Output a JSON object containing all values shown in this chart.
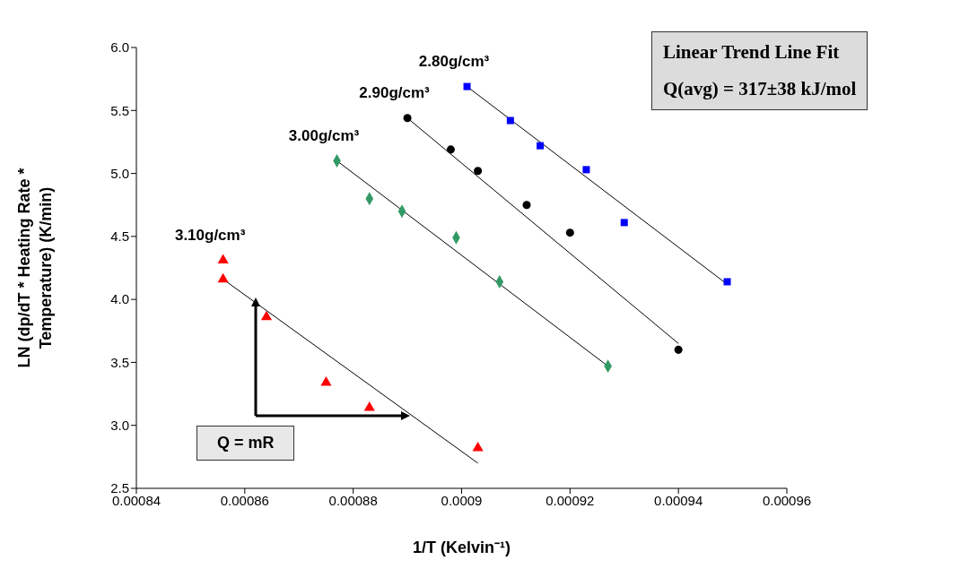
{
  "chart_data": {
    "type": "scatter",
    "xlabel": "1/T (Kelvin⁻¹)",
    "ylabel": "LN (dp/dT * Heating Rate * Temperature) (K/min)",
    "xlim": [
      0.00084,
      0.00096
    ],
    "xticks": [
      0.00084,
      0.00086,
      0.00088,
      0.0009,
      0.00092,
      0.00094,
      0.00096
    ],
    "ylim": [
      2.5,
      6.0
    ],
    "yticks": [
      {
        "value": 2.5,
        "label": "2.5"
      },
      {
        "value": 3,
        "label": "3.0"
      },
      {
        "value": 3.5,
        "label": "3.5"
      },
      {
        "value": 4,
        "label": "4.0"
      },
      {
        "value": 4.5,
        "label": "4.5"
      },
      {
        "value": 5,
        "label": "5.0"
      },
      {
        "value": 5.5,
        "label": "5.5"
      },
      {
        "value": 6,
        "label": "6.0"
      }
    ],
    "series": [
      {
        "name": "2.80g/cm³",
        "marker": "square",
        "color": "#0000ff",
        "x": [
          0.000901,
          0.000909,
          0.0009145,
          0.000923,
          0.00093,
          0.000949
        ],
        "values": [
          5.69,
          5.42,
          5.22,
          5.03,
          4.61,
          4.14
        ]
      },
      {
        "name": "2.90g/cm³",
        "marker": "circle",
        "color": "#000000",
        "x": [
          0.00089,
          0.000898,
          0.000903,
          0.000912,
          0.00092,
          0.00094
        ],
        "values": [
          5.44,
          5.19,
          5.02,
          4.75,
          4.53,
          3.6
        ]
      },
      {
        "name": "3.00g/cm³",
        "marker": "diamond",
        "color": "#339966",
        "x": [
          0.000877,
          0.000883,
          0.000889,
          0.000899,
          0.000907,
          0.000927
        ],
        "values": [
          5.1,
          4.8,
          4.7,
          4.49,
          4.14,
          3.47
        ]
      },
      {
        "name": "3.10g/cm³",
        "marker": "triangle",
        "color": "#ff0000",
        "x": [
          0.000856,
          0.000856,
          0.000864,
          0.000875,
          0.000883,
          0.000903
        ],
        "values": [
          4.31,
          4.16,
          3.86,
          3.34,
          3.14,
          2.82
        ]
      },
      {
        "type": "line",
        "color": "#000000",
        "x": [
          0.000901,
          0.000949
        ],
        "values": [
          5.69,
          4.12
        ]
      },
      {
        "type": "line",
        "color": "#000000",
        "x": [
          0.00089,
          0.00094
        ],
        "values": [
          5.44,
          3.65
        ]
      },
      {
        "type": "line",
        "color": "#000000",
        "x": [
          0.000877,
          0.000927
        ],
        "values": [
          5.1,
          3.47
        ]
      },
      {
        "type": "line",
        "color": "#000000",
        "x": [
          0.000856,
          0.000903
        ],
        "values": [
          4.16,
          2.7
        ]
      }
    ],
    "annotations": [
      "Linear Trend Line Fit",
      "Q(avg) = 317±38 kJ/mol",
      {
        "text": "Q = mR",
        "x": 0.000862,
        "y": 3.97
      }
    ]
  }
}
